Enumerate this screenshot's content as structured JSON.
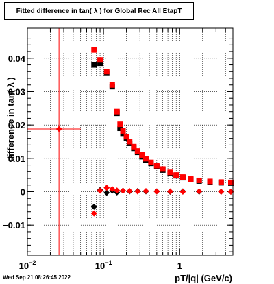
{
  "chart_data": {
    "type": "scatter",
    "title": "Fitted difference in tan( λ ) for Global Rec All EtapT",
    "xlabel": "pT/|q| (GeV/c)",
    "ylabel": "difference in tan( λ )",
    "x_scale": "log",
    "xlim": [
      0.01,
      5.0
    ],
    "ylim": [
      -0.019,
      0.049
    ],
    "x_ticks": [
      {
        "value": 0.01,
        "base": "10",
        "exp": "−2"
      },
      {
        "value": 0.1,
        "base": "10",
        "exp": "−1"
      },
      {
        "value": 1,
        "base": "1",
        "exp": ""
      }
    ],
    "y_ticks": [
      {
        "value": -0.01,
        "label": "−0.01"
      },
      {
        "value": 0,
        "label": "0"
      },
      {
        "value": 0.01,
        "label": "0.01"
      },
      {
        "value": 0.02,
        "label": "0.02"
      },
      {
        "value": 0.03,
        "label": "0.03"
      },
      {
        "value": 0.04,
        "label": "0.04"
      }
    ],
    "grid": true,
    "series": [
      {
        "marker": "square",
        "color": "#000000",
        "points": [
          [
            0.075,
            0.038
          ],
          [
            0.09,
            0.0385
          ],
          [
            0.11,
            0.0355
          ],
          [
            0.13,
            0.0315
          ],
          [
            0.15,
            0.0235
          ],
          [
            0.165,
            0.019
          ],
          [
            0.18,
            0.0175
          ],
          [
            0.2,
            0.016
          ],
          [
            0.22,
            0.0145
          ],
          [
            0.25,
            0.013
          ],
          [
            0.28,
            0.0118
          ],
          [
            0.32,
            0.0105
          ],
          [
            0.36,
            0.0095
          ],
          [
            0.42,
            0.0085
          ],
          [
            0.5,
            0.0075
          ],
          [
            0.6,
            0.0065
          ],
          [
            0.75,
            0.0055
          ],
          [
            0.9,
            0.0048
          ],
          [
            1.1,
            0.0042
          ],
          [
            1.4,
            0.0036
          ],
          [
            1.8,
            0.0032
          ],
          [
            2.5,
            0.0029
          ],
          [
            3.5,
            0.0027
          ],
          [
            4.7,
            0.0026
          ]
        ]
      },
      {
        "marker": "square",
        "color": "#ff0000",
        "points": [
          [
            0.075,
            0.0425
          ],
          [
            0.09,
            0.0395
          ],
          [
            0.11,
            0.036
          ],
          [
            0.13,
            0.032
          ],
          [
            0.15,
            0.024
          ],
          [
            0.165,
            0.0202
          ],
          [
            0.18,
            0.0182
          ],
          [
            0.2,
            0.0165
          ],
          [
            0.22,
            0.015
          ],
          [
            0.25,
            0.0135
          ],
          [
            0.28,
            0.0122
          ],
          [
            0.32,
            0.011
          ],
          [
            0.36,
            0.0099
          ],
          [
            0.42,
            0.0088
          ],
          [
            0.5,
            0.0078
          ],
          [
            0.6,
            0.0068
          ],
          [
            0.75,
            0.0058
          ],
          [
            0.9,
            0.005
          ],
          [
            1.1,
            0.0044
          ],
          [
            1.4,
            0.0038
          ],
          [
            1.8,
            0.0034
          ],
          [
            2.5,
            0.0031
          ],
          [
            3.5,
            0.0029
          ],
          [
            4.7,
            0.0028
          ]
        ]
      },
      {
        "marker": "diamond",
        "color": "#000000",
        "points": [
          [
            0.075,
            -0.0045
          ],
          [
            0.09,
            0.0005
          ],
          [
            0.11,
            -0.0003
          ],
          [
            0.13,
            0.0003
          ],
          [
            0.15,
            -0.0002
          ],
          [
            0.18,
            0.0003
          ],
          [
            0.22,
            0.0001
          ],
          [
            0.28,
            0.0002
          ],
          [
            0.36,
            0.0001
          ],
          [
            0.5,
            0.0001
          ],
          [
            0.75,
            0.0
          ],
          [
            1.1,
            0.0001
          ],
          [
            1.8,
            0.0
          ],
          [
            3.5,
            0.0
          ],
          [
            4.7,
            0.0
          ]
        ]
      },
      {
        "marker": "diamond",
        "color": "#ff0000",
        "points": [
          [
            0.026,
            0.0188
          ],
          [
            0.075,
            -0.0065
          ],
          [
            0.09,
            0.0003
          ],
          [
            0.11,
            0.0012
          ],
          [
            0.13,
            0.0008
          ],
          [
            0.15,
            0.0004
          ],
          [
            0.18,
            0.0003
          ],
          [
            0.22,
            0.0002
          ],
          [
            0.28,
            0.0001
          ],
          [
            0.36,
            0.0002
          ],
          [
            0.5,
            0.0001
          ],
          [
            0.75,
            0.0001
          ],
          [
            1.1,
            0.0
          ],
          [
            1.8,
            0.0001
          ],
          [
            3.5,
            0.0
          ],
          [
            4.7,
            0.0
          ]
        ],
        "x_error": [
          [
            0.026,
            0.01,
            0.05
          ]
        ],
        "y_error": [
          [
            0.026,
            -0.019,
            0.049
          ]
        ]
      }
    ]
  },
  "timestamp": "Wed Sep 21 08:26:45 2022"
}
